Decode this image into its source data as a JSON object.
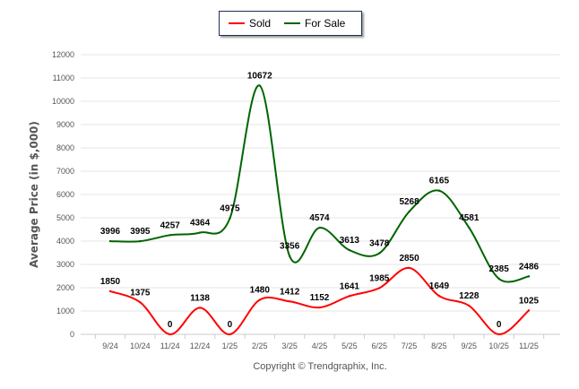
{
  "chart_data": {
    "type": "line",
    "title": "",
    "xlabel": "",
    "ylabel": "Average Price (in $,000)",
    "ylim": [
      0,
      12000
    ],
    "yticks": [
      "0",
      "1000",
      "2000",
      "3000",
      "4000",
      "5000",
      "6000",
      "7000",
      "8000",
      "9000",
      "10000",
      "11000",
      "12000"
    ],
    "categories": [
      "9/24",
      "10/24",
      "11/24",
      "12/24",
      "1/25",
      "2/25",
      "3/25",
      "4/25",
      "5/25",
      "6/25",
      "7/25",
      "8/25",
      "9/25",
      "10/25",
      "11/25"
    ],
    "series": [
      {
        "name": "Sold",
        "color": "#ff0000",
        "values": [
          1850,
          1375,
          0,
          1138,
          0,
          1480,
          1412,
          1152,
          1641,
          1985,
          2850,
          1649,
          1228,
          0,
          1025
        ]
      },
      {
        "name": "For Sale",
        "color": "#006400",
        "values": [
          3996,
          3995,
          4257,
          4364,
          4975,
          10672,
          3356,
          4574,
          3613,
          3478,
          5268,
          6165,
          4581,
          2385,
          2486
        ]
      }
    ],
    "legend_position": "top-center",
    "grid": true
  },
  "footer": {
    "copyright": "Copyright © Trendgraphix, Inc."
  }
}
